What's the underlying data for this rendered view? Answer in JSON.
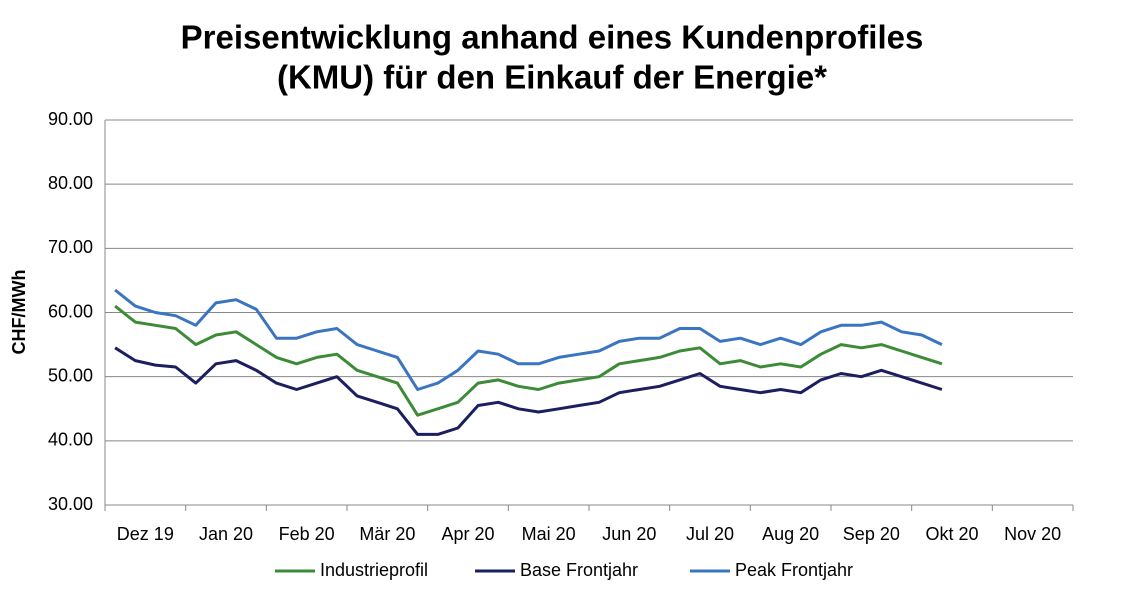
{
  "chart_data": {
    "type": "line",
    "title": [
      "Preisentwicklung anhand eines Kundenprofiles",
      "(KMU) für den Einkauf der Energie*"
    ],
    "y_label": "CHF/MWh",
    "categories": [
      "Dez 19",
      null,
      null,
      null,
      "Jan 20",
      null,
      null,
      null,
      "Feb 20",
      null,
      null,
      null,
      "Mär 20",
      null,
      null,
      null,
      "Apr 20",
      null,
      null,
      null,
      "Mai 20",
      null,
      null,
      null,
      "Jun 20",
      null,
      null,
      null,
      "Jul 20",
      null,
      null,
      null,
      "Aug 20",
      null,
      null,
      null,
      "Sep 20",
      null,
      null,
      null,
      "Okt 20",
      null,
      null,
      null,
      "Nov 20",
      null,
      null,
      null
    ],
    "series": [
      {
        "name": "Industrieprofil",
        "color": "#3d8b37",
        "values": [
          61,
          58.5,
          58,
          57.5,
          55,
          56.5,
          57,
          55,
          53,
          52,
          53,
          53.5,
          51,
          50,
          49,
          44,
          45,
          46,
          49,
          49.5,
          48.5,
          48,
          49,
          49.5,
          50,
          52,
          52.5,
          53,
          54,
          54.5,
          52,
          52.5,
          51.5,
          52,
          51.5,
          53.5,
          55,
          54.5,
          55,
          54,
          53,
          52,
          null,
          null,
          null,
          null,
          null,
          null
        ]
      },
      {
        "name": "Base Frontjahr",
        "color": "#1b1f5f",
        "values": [
          54.5,
          52.5,
          51.8,
          51.5,
          49,
          52,
          52.5,
          51,
          49,
          48,
          49,
          50,
          47,
          46,
          45,
          41,
          41,
          42,
          45.5,
          46,
          45,
          44.5,
          45,
          45.5,
          46,
          47.5,
          48,
          48.5,
          49.5,
          50.5,
          48.5,
          48,
          47.5,
          48,
          47.5,
          49.5,
          50.5,
          50,
          51,
          50,
          49,
          48,
          null,
          null,
          null,
          null,
          null,
          null
        ]
      },
      {
        "name": "Peak Frontjahr",
        "color": "#3b74c1",
        "values": [
          63.5,
          61,
          60,
          59.5,
          58,
          61.5,
          62,
          60.5,
          56,
          56,
          57,
          57.5,
          55,
          54,
          53,
          48,
          49,
          51,
          54,
          53.5,
          52,
          52,
          53,
          53.5,
          54,
          55.5,
          56,
          56,
          57.5,
          57.5,
          55.5,
          56,
          55,
          56,
          55,
          57,
          58,
          58,
          58.5,
          57,
          56.5,
          55,
          null,
          null,
          null,
          null,
          null,
          null
        ]
      }
    ],
    "ylim": [
      30,
      90
    ],
    "yticks": [
      {
        "value": 30,
        "label": "30.00"
      },
      {
        "value": 40,
        "label": "40.00"
      },
      {
        "value": 50,
        "label": "50.00"
      },
      {
        "value": 60,
        "label": "60.00"
      },
      {
        "value": 70,
        "label": "70.00"
      },
      {
        "value": 80,
        "label": "80.00"
      },
      {
        "value": 90,
        "label": "90.00"
      }
    ],
    "grid": true,
    "legend": "bottom"
  }
}
